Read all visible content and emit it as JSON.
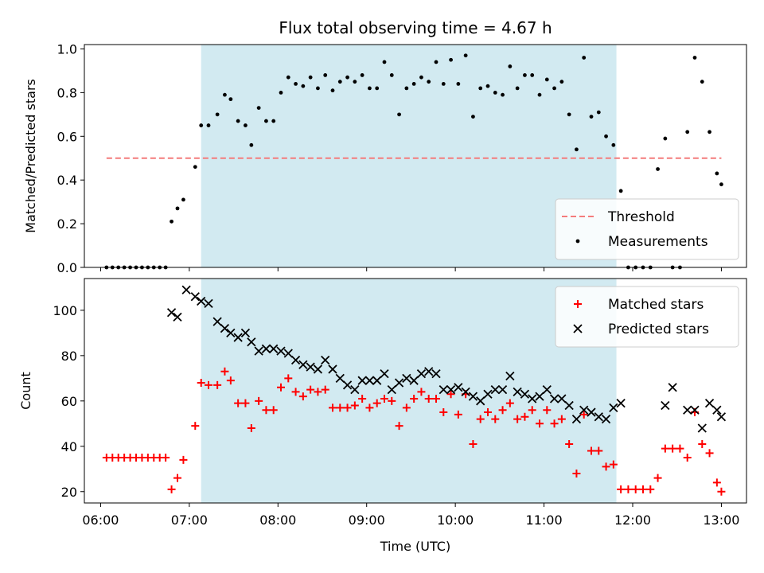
{
  "chart_data": [
    {
      "type": "scatter",
      "title": "Flux total observing time = 4.67 h",
      "xlabel": "",
      "ylabel": "Matched/Predicted stars",
      "xlim": [
        "05:49",
        "13:17"
      ],
      "ylim": [
        0,
        1.02
      ],
      "yticks": [
        "0.0",
        "0.2",
        "0.4",
        "0.6",
        "0.8",
        "1.0"
      ],
      "shaded_span": [
        "07:08",
        "11:49"
      ],
      "shaded_color": "#add8e6",
      "legend_position": "lower right",
      "threshold": {
        "name": "Threshold",
        "value": 0.5,
        "x_start": "06:04",
        "x_end": "13:00",
        "color": "#f47c7c",
        "style": "dashed"
      },
      "series": [
        {
          "name": "Measurements",
          "color": "#000000",
          "marker": "dot",
          "points": [
            [
              "06:04",
              0.0
            ],
            [
              "06:08",
              0.0
            ],
            [
              "06:12",
              0.0
            ],
            [
              "06:16",
              0.0
            ],
            [
              "06:20",
              0.0
            ],
            [
              "06:24",
              0.0
            ],
            [
              "06:28",
              0.0
            ],
            [
              "06:32",
              0.0
            ],
            [
              "06:36",
              0.0
            ],
            [
              "06:40",
              0.0
            ],
            [
              "06:44",
              0.0
            ],
            [
              "06:48",
              0.21
            ],
            [
              "06:52",
              0.27
            ],
            [
              "06:56",
              0.31
            ],
            [
              "07:04",
              0.46
            ],
            [
              "07:08",
              0.65
            ],
            [
              "07:13",
              0.65
            ],
            [
              "07:19",
              0.7
            ],
            [
              "07:24",
              0.79
            ],
            [
              "07:28",
              0.77
            ],
            [
              "07:33",
              0.67
            ],
            [
              "07:38",
              0.65
            ],
            [
              "07:42",
              0.56
            ],
            [
              "07:47",
              0.73
            ],
            [
              "07:52",
              0.67
            ],
            [
              "07:57",
              0.67
            ],
            [
              "08:02",
              0.8
            ],
            [
              "08:07",
              0.87
            ],
            [
              "08:12",
              0.84
            ],
            [
              "08:17",
              0.83
            ],
            [
              "08:22",
              0.87
            ],
            [
              "08:27",
              0.82
            ],
            [
              "08:32",
              0.88
            ],
            [
              "08:37",
              0.81
            ],
            [
              "08:42",
              0.85
            ],
            [
              "08:47",
              0.87
            ],
            [
              "08:52",
              0.85
            ],
            [
              "08:57",
              0.88
            ],
            [
              "09:02",
              0.82
            ],
            [
              "09:07",
              0.82
            ],
            [
              "09:12",
              0.94
            ],
            [
              "09:17",
              0.88
            ],
            [
              "09:22",
              0.7
            ],
            [
              "09:27",
              0.82
            ],
            [
              "09:32",
              0.84
            ],
            [
              "09:37",
              0.87
            ],
            [
              "09:42",
              0.85
            ],
            [
              "09:47",
              0.94
            ],
            [
              "09:52",
              0.84
            ],
            [
              "09:57",
              0.95
            ],
            [
              "10:02",
              0.84
            ],
            [
              "10:07",
              0.97
            ],
            [
              "10:12",
              0.69
            ],
            [
              "10:17",
              0.82
            ],
            [
              "10:22",
              0.83
            ],
            [
              "10:27",
              0.8
            ],
            [
              "10:32",
              0.79
            ],
            [
              "10:37",
              0.92
            ],
            [
              "10:42",
              0.82
            ],
            [
              "10:47",
              0.88
            ],
            [
              "10:52",
              0.88
            ],
            [
              "10:57",
              0.79
            ],
            [
              "11:02",
              0.86
            ],
            [
              "11:07",
              0.82
            ],
            [
              "11:12",
              0.85
            ],
            [
              "11:17",
              0.7
            ],
            [
              "11:22",
              0.54
            ],
            [
              "11:27",
              0.96
            ],
            [
              "11:32",
              0.69
            ],
            [
              "11:37",
              0.71
            ],
            [
              "11:42",
              0.6
            ],
            [
              "11:47",
              0.56
            ],
            [
              "11:52",
              0.35
            ],
            [
              "11:57",
              0.0
            ],
            [
              "12:02",
              0.0
            ],
            [
              "12:07",
              0.0
            ],
            [
              "12:12",
              0.0
            ],
            [
              "12:17",
              0.45
            ],
            [
              "12:22",
              0.59
            ],
            [
              "12:27",
              0.0
            ],
            [
              "12:32",
              0.0
            ],
            [
              "12:37",
              0.62
            ],
            [
              "12:42",
              0.96
            ],
            [
              "12:47",
              0.85
            ],
            [
              "12:52",
              0.62
            ],
            [
              "12:57",
              0.43
            ],
            [
              "13:00",
              0.38
            ]
          ]
        }
      ]
    },
    {
      "type": "scatter",
      "title": "",
      "xlabel": "Time (UTC)",
      "ylabel": "Count",
      "xlim": [
        "05:49",
        "13:17"
      ],
      "ylim": [
        15,
        114
      ],
      "yticks": [
        "20",
        "40",
        "60",
        "80",
        "100"
      ],
      "xticks": [
        "06:00",
        "07:00",
        "08:00",
        "09:00",
        "10:00",
        "11:00",
        "12:00",
        "13:00"
      ],
      "shaded_span": [
        "07:08",
        "11:49"
      ],
      "shaded_color": "#add8e6",
      "legend_position": "upper right",
      "series": [
        {
          "name": "Matched stars",
          "color": "#ff0000",
          "marker": "plus",
          "points": [
            [
              "06:04",
              35
            ],
            [
              "06:08",
              35
            ],
            [
              "06:12",
              35
            ],
            [
              "06:16",
              35
            ],
            [
              "06:20",
              35
            ],
            [
              "06:24",
              35
            ],
            [
              "06:28",
              35
            ],
            [
              "06:32",
              35
            ],
            [
              "06:36",
              35
            ],
            [
              "06:40",
              35
            ],
            [
              "06:44",
              35
            ],
            [
              "06:48",
              21
            ],
            [
              "06:52",
              26
            ],
            [
              "06:56",
              34
            ],
            [
              "07:04",
              49
            ],
            [
              "07:08",
              68
            ],
            [
              "07:13",
              67
            ],
            [
              "07:19",
              67
            ],
            [
              "07:24",
              73
            ],
            [
              "07:28",
              69
            ],
            [
              "07:33",
              59
            ],
            [
              "07:38",
              59
            ],
            [
              "07:42",
              48
            ],
            [
              "07:47",
              60
            ],
            [
              "07:52",
              56
            ],
            [
              "07:57",
              56
            ],
            [
              "08:02",
              66
            ],
            [
              "08:07",
              70
            ],
            [
              "08:12",
              64
            ],
            [
              "08:17",
              62
            ],
            [
              "08:22",
              65
            ],
            [
              "08:27",
              64
            ],
            [
              "08:32",
              65
            ],
            [
              "08:37",
              57
            ],
            [
              "08:42",
              57
            ],
            [
              "08:47",
              57
            ],
            [
              "08:52",
              58
            ],
            [
              "08:57",
              61
            ],
            [
              "09:02",
              57
            ],
            [
              "09:07",
              59
            ],
            [
              "09:12",
              61
            ],
            [
              "09:17",
              60
            ],
            [
              "09:22",
              49
            ],
            [
              "09:27",
              57
            ],
            [
              "09:32",
              61
            ],
            [
              "09:37",
              64
            ],
            [
              "09:42",
              61
            ],
            [
              "09:47",
              61
            ],
            [
              "09:52",
              55
            ],
            [
              "09:57",
              63
            ],
            [
              "10:02",
              54
            ],
            [
              "10:07",
              63
            ],
            [
              "10:12",
              41
            ],
            [
              "10:17",
              52
            ],
            [
              "10:22",
              55
            ],
            [
              "10:27",
              52
            ],
            [
              "10:32",
              56
            ],
            [
              "10:37",
              59
            ],
            [
              "10:42",
              52
            ],
            [
              "10:47",
              53
            ],
            [
              "10:52",
              56
            ],
            [
              "10:57",
              50
            ],
            [
              "11:02",
              56
            ],
            [
              "11:07",
              50
            ],
            [
              "11:12",
              52
            ],
            [
              "11:17",
              41
            ],
            [
              "11:22",
              28
            ],
            [
              "11:27",
              54
            ],
            [
              "11:32",
              38
            ],
            [
              "11:37",
              38
            ],
            [
              "11:42",
              31
            ],
            [
              "11:47",
              32
            ],
            [
              "11:52",
              21
            ],
            [
              "11:57",
              21
            ],
            [
              "12:02",
              21
            ],
            [
              "12:07",
              21
            ],
            [
              "12:12",
              21
            ],
            [
              "12:17",
              26
            ],
            [
              "12:22",
              39
            ],
            [
              "12:27",
              39
            ],
            [
              "12:32",
              39
            ],
            [
              "12:37",
              35
            ],
            [
              "12:42",
              55
            ],
            [
              "12:47",
              41
            ],
            [
              "12:52",
              37
            ],
            [
              "12:57",
              24
            ],
            [
              "13:00",
              20
            ]
          ]
        },
        {
          "name": "Predicted stars",
          "color": "#000000",
          "marker": "x",
          "points": [
            [
              "06:48",
              99
            ],
            [
              "06:52",
              97
            ],
            [
              "06:58",
              109
            ],
            [
              "07:04",
              106
            ],
            [
              "07:08",
              104
            ],
            [
              "07:13",
              103
            ],
            [
              "07:19",
              95
            ],
            [
              "07:24",
              92
            ],
            [
              "07:28",
              90
            ],
            [
              "07:33",
              88
            ],
            [
              "07:38",
              90
            ],
            [
              "07:42",
              86
            ],
            [
              "07:47",
              82
            ],
            [
              "07:52",
              83
            ],
            [
              "07:57",
              83
            ],
            [
              "08:02",
              82
            ],
            [
              "08:07",
              81
            ],
            [
              "08:12",
              78
            ],
            [
              "08:17",
              76
            ],
            [
              "08:22",
              75
            ],
            [
              "08:27",
              74
            ],
            [
              "08:32",
              78
            ],
            [
              "08:37",
              74
            ],
            [
              "08:42",
              70
            ],
            [
              "08:47",
              67
            ],
            [
              "08:52",
              65
            ],
            [
              "08:57",
              69
            ],
            [
              "09:02",
              69
            ],
            [
              "09:07",
              69
            ],
            [
              "09:12",
              72
            ],
            [
              "09:17",
              65
            ],
            [
              "09:22",
              68
            ],
            [
              "09:27",
              70
            ],
            [
              "09:32",
              69
            ],
            [
              "09:37",
              72
            ],
            [
              "09:42",
              73
            ],
            [
              "09:47",
              72
            ],
            [
              "09:52",
              65
            ],
            [
              "09:57",
              65
            ],
            [
              "10:02",
              66
            ],
            [
              "10:07",
              64
            ],
            [
              "10:12",
              62
            ],
            [
              "10:17",
              60
            ],
            [
              "10:22",
              63
            ],
            [
              "10:27",
              65
            ],
            [
              "10:32",
              65
            ],
            [
              "10:37",
              71
            ],
            [
              "10:42",
              64
            ],
            [
              "10:47",
              63
            ],
            [
              "10:52",
              61
            ],
            [
              "10:57",
              62
            ],
            [
              "11:02",
              65
            ],
            [
              "11:07",
              61
            ],
            [
              "11:12",
              61
            ],
            [
              "11:17",
              58
            ],
            [
              "11:22",
              52
            ],
            [
              "11:27",
              56
            ],
            [
              "11:32",
              55
            ],
            [
              "11:37",
              53
            ],
            [
              "11:42",
              52
            ],
            [
              "11:47",
              57
            ],
            [
              "11:52",
              59
            ],
            [
              "12:22",
              58
            ],
            [
              "12:27",
              66
            ],
            [
              "12:37",
              56
            ],
            [
              "12:42",
              56
            ],
            [
              "12:47",
              48
            ],
            [
              "12:52",
              59
            ],
            [
              "12:57",
              56
            ],
            [
              "13:00",
              53
            ]
          ]
        }
      ]
    }
  ]
}
